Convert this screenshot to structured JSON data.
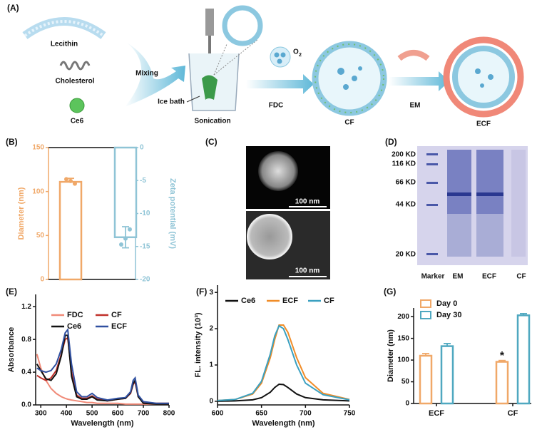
{
  "figure": {
    "panel_labels": [
      "(A)",
      "(B)",
      "(C)",
      "(D)",
      "(E)",
      "(F)",
      "(G)"
    ],
    "scheme": {
      "lecithin": "Lecithin",
      "cholesterol": "Cholesterol",
      "ce6": "Ce6",
      "mixing": "Mixing",
      "ice_bath": "Ice bath",
      "sonication": "Sonication",
      "o": "O",
      "o_sub": "2",
      "fdc": "FDC",
      "cf": "CF",
      "em": "EM",
      "ecf": "ECF"
    },
    "tem": {
      "scale_bars": [
        "100 nm",
        "100 nm"
      ]
    },
    "gel": {
      "markers": [
        "200 KD",
        "116 KD",
        "66 KD",
        "44 KD",
        "20 KD"
      ],
      "lanes": [
        "Marker",
        "EM",
        "ECF",
        "CF"
      ]
    }
  },
  "chart_data": [
    {
      "type": "bar",
      "categories": [
        null,
        null
      ],
      "ylabel": "Diameter (nm)",
      "y2label": "Zeta potential (mV)",
      "ylim": [
        0,
        150
      ],
      "yticks": [
        0,
        50,
        100,
        150
      ],
      "y2lim": [
        -20,
        0
      ],
      "y2ticks": [
        -20,
        -15,
        -10,
        -5,
        0
      ],
      "yaxis_color": "#f0a868",
      "y2axis_color": "#8fc4d6",
      "series": [
        {
          "color": "#f0a868",
          "values": [
            111,
            null
          ],
          "errors": [
            4,
            null
          ],
          "points": [
            [
              114,
              109,
              112
            ],
            null
          ]
        },
        {
          "color": "#8fc4d6",
          "axis": "y2",
          "values": [
            null,
            -13.6
          ],
          "errors": [
            null,
            1.6
          ],
          "points": [
            null,
            [
              -14.7,
              -12.4,
              -13.8
            ]
          ]
        }
      ]
    },
    {
      "type": "line",
      "xlabel": "Wavelength (nm)",
      "ylabel": "Absorbance",
      "xlim": [
        280,
        800
      ],
      "xticks": [
        300,
        400,
        500,
        600,
        700,
        800
      ],
      "ylim": [
        0,
        1.35
      ],
      "yticks": [
        {
          "value": 0,
          "label": "0.0"
        },
        {
          "value": 0.4,
          "label": "0.4"
        },
        {
          "value": 0.8,
          "label": "0.8"
        },
        {
          "value": 1.2,
          "label": "1.2"
        }
      ],
      "x": [
        285,
        300,
        320,
        340,
        360,
        380,
        395,
        405,
        420,
        440,
        460,
        480,
        500,
        520,
        560,
        600,
        630,
        650,
        660,
        668,
        680,
        700,
        750,
        800
      ],
      "series": [
        {
          "name": "FDC",
          "color": "#f08a78",
          "values": [
            0.62,
            0.45,
            0.3,
            0.2,
            0.14,
            0.1,
            0.08,
            0.07,
            0.06,
            0.05,
            0.04,
            0.03,
            0.03,
            0.02,
            0.02,
            0.02,
            0.01,
            0.01,
            0.01,
            0.01,
            0.01,
            0.01,
            0.01,
            0.01
          ]
        },
        {
          "name": "CF",
          "color": "#c0302a",
          "values": [
            0.36,
            0.33,
            0.3,
            0.33,
            0.42,
            0.62,
            0.8,
            0.82,
            0.4,
            0.12,
            0.08,
            0.08,
            0.11,
            0.07,
            0.05,
            0.07,
            0.08,
            0.14,
            0.25,
            0.28,
            0.1,
            0.03,
            0.02,
            0.02
          ]
        },
        {
          "name": "Ce6",
          "color": "#111111",
          "values": [
            0.5,
            0.42,
            0.32,
            0.3,
            0.38,
            0.6,
            0.85,
            0.85,
            0.35,
            0.1,
            0.07,
            0.07,
            0.1,
            0.06,
            0.05,
            0.07,
            0.08,
            0.15,
            0.26,
            0.3,
            0.1,
            0.02,
            0.01,
            0.01
          ]
        },
        {
          "name": "ECF",
          "color": "#3050a0",
          "values": [
            0.45,
            0.42,
            0.4,
            0.42,
            0.5,
            0.68,
            0.88,
            0.92,
            0.5,
            0.16,
            0.1,
            0.1,
            0.14,
            0.09,
            0.06,
            0.08,
            0.09,
            0.16,
            0.3,
            0.33,
            0.12,
            0.04,
            0.02,
            0.02
          ]
        }
      ]
    },
    {
      "type": "line",
      "xlabel": "Wavelength (nm)",
      "ylabel": "FL. intensity (10³)",
      "xlim": [
        600,
        750
      ],
      "xticks": [
        600,
        650,
        700,
        750
      ],
      "ylim": [
        -0.1,
        3.2
      ],
      "yticks": [
        0,
        1,
        2,
        3
      ],
      "x": [
        600,
        620,
        640,
        650,
        660,
        665,
        670,
        675,
        680,
        690,
        700,
        720,
        750
      ],
      "series": [
        {
          "name": "Ce6",
          "color": "#111111",
          "values": [
            0,
            0.01,
            0.04,
            0.1,
            0.25,
            0.38,
            0.47,
            0.46,
            0.38,
            0.2,
            0.1,
            0.04,
            0.01
          ]
        },
        {
          "name": "ECF",
          "color": "#f08c28",
          "values": [
            0.02,
            0.05,
            0.2,
            0.5,
            1.2,
            1.7,
            2.1,
            2.1,
            1.9,
            1.2,
            0.65,
            0.22,
            0.05
          ]
        },
        {
          "name": "CF",
          "color": "#3aa0c0",
          "values": [
            0.02,
            0.05,
            0.22,
            0.55,
            1.3,
            1.8,
            2.08,
            2.0,
            1.7,
            1.0,
            0.5,
            0.18,
            0.04
          ]
        }
      ]
    },
    {
      "type": "bar",
      "categories": [
        "ECF",
        "CF"
      ],
      "ylabel": "Diameter (nm)",
      "ylim": [
        0,
        220
      ],
      "yticks": [
        0,
        50,
        100,
        150,
        200
      ],
      "annotations": [
        {
          "text": "*"
        }
      ],
      "series": [
        {
          "name": "Day 0",
          "color": "#f0a868",
          "values": [
            110,
            96
          ],
          "errors": [
            5,
            3
          ]
        },
        {
          "name": "Day 30",
          "color": "#4fa8c0",
          "values": [
            132,
            203
          ],
          "errors": [
            6,
            4
          ]
        }
      ]
    }
  ]
}
